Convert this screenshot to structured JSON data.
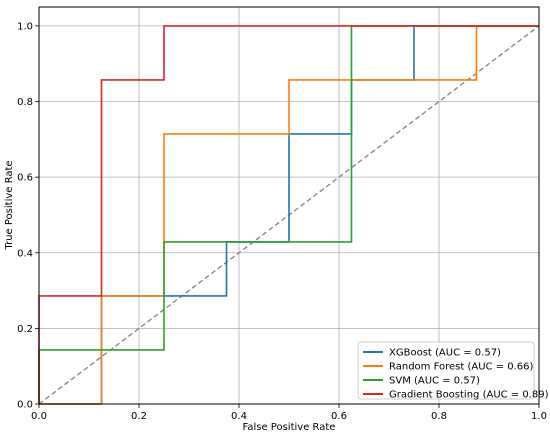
{
  "chart_data": {
    "type": "line",
    "title": "",
    "xlabel": "False Positive Rate",
    "ylabel": "True Positive Rate",
    "xlim": [
      0,
      1.0
    ],
    "ylim": [
      0,
      1.05
    ],
    "grid": true,
    "legend_position": "bottom-right",
    "xticks": [
      0.0,
      0.2,
      0.4,
      0.6,
      0.8,
      1.0
    ],
    "yticks": [
      0.0,
      0.2,
      0.4,
      0.6,
      0.8,
      1.0
    ],
    "xtick_labels": [
      "0.0",
      "0.2",
      "0.4",
      "0.6",
      "0.8",
      "1.0"
    ],
    "ytick_labels": [
      "0.0",
      "0.2",
      "0.4",
      "0.6",
      "0.8",
      "1.0"
    ],
    "series": [
      {
        "name": "XGBoost (AUC = 0.57)",
        "color": "#1f77b4",
        "x": [
          0,
          0.125,
          0.125,
          0.375,
          0.375,
          0.5,
          0.5,
          0.625,
          0.625,
          0.75,
          0.75,
          1.0
        ],
        "y": [
          0,
          0,
          0.2857,
          0.2857,
          0.4286,
          0.4286,
          0.7143,
          0.7143,
          0.8571,
          0.8571,
          1.0,
          1.0
        ]
      },
      {
        "name": "Random Forest (AUC = 0.66)",
        "color": "#ff7f0e",
        "x": [
          0,
          0.125,
          0.125,
          0.25,
          0.25,
          0.5,
          0.5,
          0.875,
          0.875,
          1.0
        ],
        "y": [
          0,
          0,
          0.2857,
          0.2857,
          0.7143,
          0.7143,
          0.8571,
          0.8571,
          1.0,
          1.0
        ]
      },
      {
        "name": "SVM (AUC = 0.57)",
        "color": "#2ca02c",
        "x": [
          0,
          0,
          0.25,
          0.25,
          0.625,
          0.625,
          1.0
        ],
        "y": [
          0,
          0.1429,
          0.1429,
          0.4286,
          0.4286,
          1.0,
          1.0
        ]
      },
      {
        "name": "Gradient Boosting (AUC = 0.89)",
        "color": "#d62728",
        "x": [
          0,
          0,
          0.125,
          0.125,
          0.25,
          0.25,
          1.0
        ],
        "y": [
          0,
          0.2857,
          0.2857,
          0.8571,
          0.8571,
          1.0,
          1.0
        ]
      }
    ],
    "reference_line": {
      "x": [
        0,
        1
      ],
      "y": [
        0,
        1
      ],
      "color": "#808080",
      "style": "dashed"
    }
  }
}
